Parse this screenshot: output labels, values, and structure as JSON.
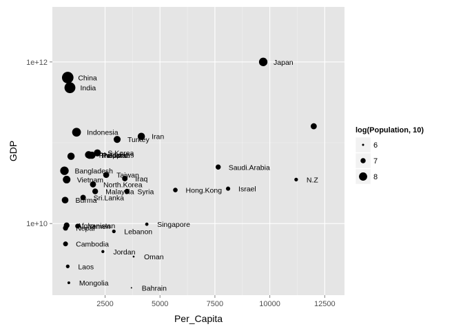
{
  "chart_data": {
    "type": "scatter",
    "xlabel": "Per_Capita",
    "ylabel": "GDP",
    "x_ticks": [
      2500,
      5000,
      7500,
      10000,
      12500
    ],
    "x_tick_labels": [
      "2500",
      "5000",
      "7500",
      "10000",
      "12500"
    ],
    "y_ticks": [
      10000000000,
      1000000000000
    ],
    "y_tick_labels": [
      "1e+10",
      "1e+12"
    ],
    "y_scale": "log10",
    "xlim": [
      100,
      13400
    ],
    "ylim": [
      1300000000,
      4800000000000
    ],
    "grid": true,
    "legend": {
      "title": "log(Population, 10)",
      "position": "right",
      "entries": [
        {
          "label": "6",
          "value": 6
        },
        {
          "label": "7",
          "value": 7
        },
        {
          "label": "8",
          "value": 8
        }
      ]
    },
    "points": [
      {
        "label": "Japan",
        "x": 9700,
        "y": 1000000000000,
        "size": 8.1
      },
      {
        "label": "China",
        "x": 800,
        "y": 640000000000,
        "size": 9.1
      },
      {
        "label": "India",
        "x": 900,
        "y": 480000000000,
        "size": 8.9
      },
      {
        "label": "Indonesia",
        "x": 1200,
        "y": 135000000000,
        "size": 8.2
      },
      {
        "label": "Iran",
        "x": 4150,
        "y": 120000000000,
        "size": 7.7
      },
      {
        "label": "Turkey",
        "x": 3050,
        "y": 110000000000,
        "size": 7.6
      },
      {
        "label": "",
        "x": 12000,
        "y": 160000000000,
        "size": 7.3
      },
      {
        "label": "S.Korea",
        "x": 2150,
        "y": 75000000000,
        "size": 7.6
      },
      {
        "label": "Thailand",
        "x": 1800,
        "y": 70000000000,
        "size": 7.7
      },
      {
        "label": "Pakistan",
        "x": 1900,
        "y": 70000000000,
        "size": 7.7
      },
      {
        "label": "Philippines",
        "x": 1750,
        "y": 71000000000,
        "size": 7.7
      },
      {
        "label": "",
        "x": 950,
        "y": 68000000000,
        "size": 7.7
      },
      {
        "label": "Saudi.Arabia",
        "x": 7650,
        "y": 50000000000,
        "size": 7.0
      },
      {
        "label": "Bangladesh",
        "x": 650,
        "y": 45000000000,
        "size": 8.1
      },
      {
        "label": "Taiwan",
        "x": 2550,
        "y": 40000000000,
        "size": 7.3
      },
      {
        "label": "Vietnam",
        "x": 750,
        "y": 35000000000,
        "size": 7.8
      },
      {
        "label": "N.Z",
        "x": 11200,
        "y": 35000000000,
        "size": 6.5
      },
      {
        "label": "Iraq",
        "x": 3400,
        "y": 36000000000,
        "size": 7.1
      },
      {
        "label": "North.Korea",
        "x": 1950,
        "y": 30500000000,
        "size": 7.3
      },
      {
        "label": "Israel",
        "x": 8100,
        "y": 27000000000,
        "size": 6.7
      },
      {
        "label": "Malaysia",
        "x": 2050,
        "y": 25000000000,
        "size": 7.2
      },
      {
        "label": "Syria",
        "x": 3500,
        "y": 25000000000,
        "size": 7.0
      },
      {
        "label": "Hong.Kong",
        "x": 5700,
        "y": 26000000000,
        "size": 6.8
      },
      {
        "label": "Sri.Lanka",
        "x": 1500,
        "y": 21000000000,
        "size": 7.1
      },
      {
        "label": "Burma",
        "x": 680,
        "y": 19500000000,
        "size": 7.5
      },
      {
        "label": "Singapore",
        "x": 4400,
        "y": 9800000000,
        "size": 6.4
      },
      {
        "label": "Afghanistan",
        "x": 750,
        "y": 9500000000,
        "size": 7.2
      },
      {
        "label": "Yemen",
        "x": 1250,
        "y": 9300000000,
        "size": 6.9
      },
      {
        "label": "Nepal",
        "x": 700,
        "y": 8800000000,
        "size": 7.0
      },
      {
        "label": "Lebanon",
        "x": 2900,
        "y": 8000000000,
        "size": 6.5
      },
      {
        "label": "Cambodia",
        "x": 700,
        "y": 5600000000,
        "size": 6.9
      },
      {
        "label": "Jordan",
        "x": 2400,
        "y": 4500000000,
        "size": 6.3
      },
      {
        "label": "Oman",
        "x": 3800,
        "y": 3900000000,
        "size": 5.9
      },
      {
        "label": "Laos",
        "x": 800,
        "y": 2950000000,
        "size": 6.5
      },
      {
        "label": "Mongolia",
        "x": 850,
        "y": 1850000000,
        "size": 6.2
      },
      {
        "label": "Bahrain",
        "x": 3700,
        "y": 1600000000,
        "size": 5.6
      }
    ]
  }
}
